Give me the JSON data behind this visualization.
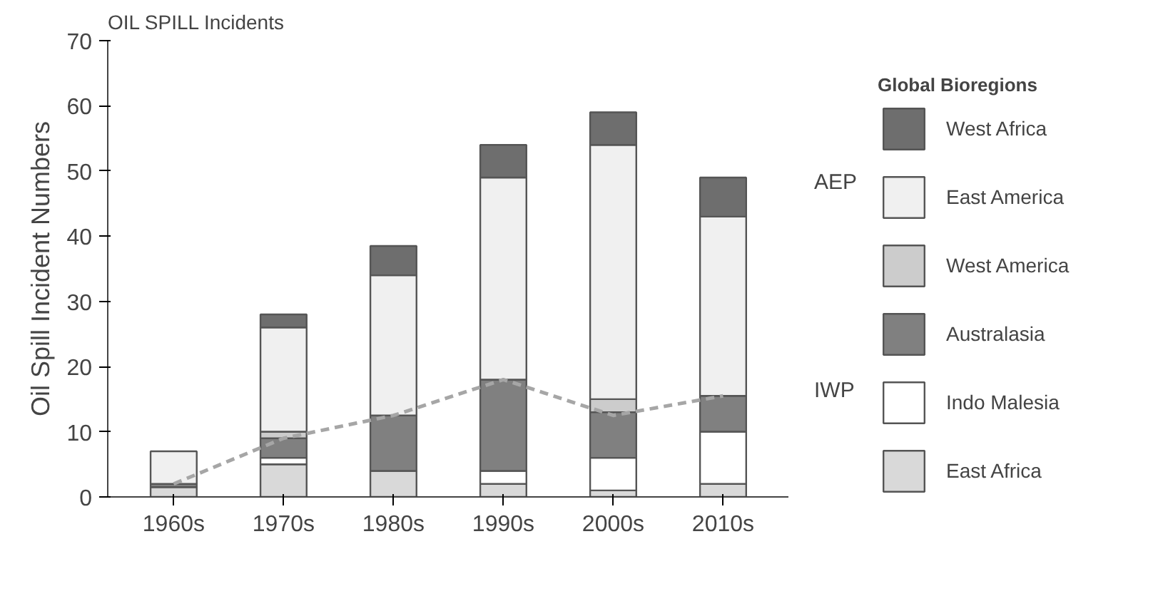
{
  "chart_data": {
    "type": "bar",
    "title": "OIL SPILL Incidents",
    "ylabel": "Oil Spill Incident Numbers",
    "legend_title": "Global Bioregions",
    "categories": [
      "1960s",
      "1970s",
      "1980s",
      "1990s",
      "2000s",
      "2010s"
    ],
    "stacked": true,
    "series": [
      {
        "name": "East Africa",
        "color": "#d9d9d9",
        "values": [
          1.5,
          5,
          4,
          2,
          1,
          2
        ]
      },
      {
        "name": "Indo Malesia",
        "color": "#ffffff",
        "values": [
          0,
          1,
          0,
          2,
          5,
          8
        ]
      },
      {
        "name": "Australasia",
        "color": "#808080",
        "values": [
          0.5,
          3,
          8.5,
          14,
          7,
          5.5
        ]
      },
      {
        "name": "West America",
        "color": "#cccccc",
        "values": [
          0,
          1,
          0,
          0,
          2,
          0
        ]
      },
      {
        "name": "East America",
        "color": "#f0f0f0",
        "values": [
          5,
          16,
          21.5,
          31,
          39,
          27.5
        ]
      },
      {
        "name": "West Africa",
        "color": "#6e6e6e",
        "values": [
          0,
          2,
          4.5,
          5,
          5,
          6
        ]
      },
      {
        "type": "line",
        "color": "#a6a6a6",
        "line_style": "dashed",
        "marker": "none",
        "values": [
          2,
          9,
          12.5,
          18,
          12.5,
          15.5
        ]
      }
    ],
    "ylim": [
      0,
      70
    ],
    "yticks": [
      0,
      10,
      20,
      30,
      40,
      50,
      60,
      70
    ],
    "grid": false,
    "legend": "right",
    "annotations": [
      "AEP",
      "IWP"
    ]
  }
}
